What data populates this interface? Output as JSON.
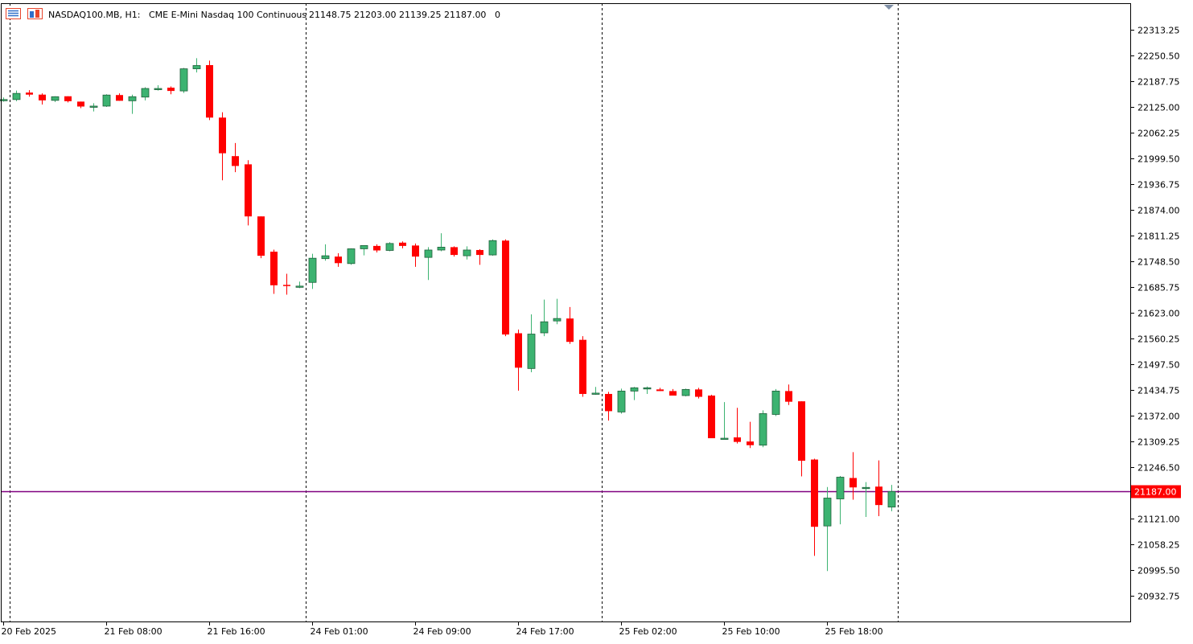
{
  "header": {
    "symbol": "NASDAQ100.MB, H1:",
    "description": "CME E-Mini Nasdaq 100 Continuous",
    "ohlc": "21148.75 21203.00 21139.25 21187.00",
    "extra": "0"
  },
  "colors": {
    "background": "#ffffff",
    "bull": "#3cb371",
    "bear": "#ff0000",
    "wick": "#000000",
    "price_line": "#800080",
    "price_label_bg": "#ff0000",
    "price_label_text": "#ffffff",
    "separator": "#000000"
  },
  "chart_data": {
    "type": "candlestick",
    "timeframe": "H1",
    "current_price": 21187.0,
    "current_price_label": "21187.00",
    "y_ticks": [
      "22313.25",
      "22250.50",
      "22187.75",
      "22125.00",
      "22062.25",
      "21999.50",
      "21936.75",
      "21874.00",
      "21811.25",
      "21748.50",
      "21685.75",
      "21623.00",
      "21560.25",
      "21497.50",
      "21434.75",
      "21372.00",
      "21309.25",
      "21246.50",
      "21121.00",
      "21058.25",
      "20995.50",
      "20932.75"
    ],
    "x_labels": [
      {
        "index": 0,
        "label": "20 Feb 2025"
      },
      {
        "index": 8,
        "label": "21 Feb 08:00"
      },
      {
        "index": 16,
        "label": "21 Feb 16:00"
      },
      {
        "index": 24,
        "label": "24 Feb 01:00"
      },
      {
        "index": 32,
        "label": "24 Feb 09:00"
      },
      {
        "index": 40,
        "label": "24 Feb 17:00"
      },
      {
        "index": 48,
        "label": "25 Feb 02:00"
      },
      {
        "index": 56,
        "label": "25 Feb 10:00"
      },
      {
        "index": 64,
        "label": "25 Feb 18:00"
      }
    ],
    "day_separators": [
      0.5,
      23.5,
      46.5,
      69.5
    ],
    "candles": [
      {
        "o": 22141,
        "h": 22148,
        "l": 22138,
        "c": 22143
      },
      {
        "o": 22143,
        "h": 22165,
        "l": 22139,
        "c": 22158
      },
      {
        "o": 22160,
        "h": 22166,
        "l": 22150,
        "c": 22155
      },
      {
        "o": 22155,
        "h": 22158,
        "l": 22131,
        "c": 22141
      },
      {
        "o": 22141,
        "h": 22151,
        "l": 22137,
        "c": 22150
      },
      {
        "o": 22151,
        "h": 22151,
        "l": 22136,
        "c": 22139
      },
      {
        "o": 22138,
        "h": 22138,
        "l": 22122,
        "c": 22126
      },
      {
        "o": 22127,
        "h": 22134,
        "l": 22114,
        "c": 22127
      },
      {
        "o": 22127,
        "h": 22156,
        "l": 22125,
        "c": 22154
      },
      {
        "o": 22154,
        "h": 22158,
        "l": 22140,
        "c": 22140
      },
      {
        "o": 22140,
        "h": 22155,
        "l": 22108,
        "c": 22150
      },
      {
        "o": 22149,
        "h": 22173,
        "l": 22141,
        "c": 22170
      },
      {
        "o": 22168,
        "h": 22178,
        "l": 22165,
        "c": 22170
      },
      {
        "o": 22172,
        "h": 22175,
        "l": 22156,
        "c": 22164
      },
      {
        "o": 22164,
        "h": 22220,
        "l": 22159,
        "c": 22218
      },
      {
        "o": 22218,
        "h": 22244,
        "l": 22209,
        "c": 22226
      },
      {
        "o": 22227,
        "h": 22238,
        "l": 22093,
        "c": 22099
      },
      {
        "o": 22099,
        "h": 22112,
        "l": 21946,
        "c": 22012
      },
      {
        "o": 22005,
        "h": 22037,
        "l": 21966,
        "c": 21981
      },
      {
        "o": 21985,
        "h": 21995,
        "l": 21836,
        "c": 21858
      },
      {
        "o": 21858,
        "h": 21858,
        "l": 21756,
        "c": 21762
      },
      {
        "o": 21772,
        "h": 21777,
        "l": 21669,
        "c": 21690
      },
      {
        "o": 21691,
        "h": 21718,
        "l": 21667,
        "c": 21690
      },
      {
        "o": 21688,
        "h": 21699,
        "l": 21683,
        "c": 21688
      },
      {
        "o": 21697,
        "h": 21767,
        "l": 21681,
        "c": 21756
      },
      {
        "o": 21755,
        "h": 21790,
        "l": 21750,
        "c": 21762
      },
      {
        "o": 21760,
        "h": 21768,
        "l": 21735,
        "c": 21744
      },
      {
        "o": 21743,
        "h": 21780,
        "l": 21740,
        "c": 21779
      },
      {
        "o": 21779,
        "h": 21787,
        "l": 21763,
        "c": 21787
      },
      {
        "o": 21786,
        "h": 21790,
        "l": 21770,
        "c": 21775
      },
      {
        "o": 21775,
        "h": 21795,
        "l": 21773,
        "c": 21792
      },
      {
        "o": 21794,
        "h": 21797,
        "l": 21780,
        "c": 21786
      },
      {
        "o": 21787,
        "h": 21792,
        "l": 21735,
        "c": 21760
      },
      {
        "o": 21758,
        "h": 21783,
        "l": 21703,
        "c": 21776
      },
      {
        "o": 21776,
        "h": 21817,
        "l": 21773,
        "c": 21783
      },
      {
        "o": 21783,
        "h": 21785,
        "l": 21760,
        "c": 21764
      },
      {
        "o": 21762,
        "h": 21785,
        "l": 21753,
        "c": 21776
      },
      {
        "o": 21776,
        "h": 21778,
        "l": 21740,
        "c": 21764
      },
      {
        "o": 21764,
        "h": 21802,
        "l": 21762,
        "c": 21799
      },
      {
        "o": 21799,
        "h": 21802,
        "l": 21566,
        "c": 21570
      },
      {
        "o": 21573,
        "h": 21582,
        "l": 21433,
        "c": 21489
      },
      {
        "o": 21487,
        "h": 21619,
        "l": 21478,
        "c": 21571
      },
      {
        "o": 21574,
        "h": 21655,
        "l": 21566,
        "c": 21601
      },
      {
        "o": 21603,
        "h": 21657,
        "l": 21595,
        "c": 21609
      },
      {
        "o": 21609,
        "h": 21637,
        "l": 21547,
        "c": 21552
      },
      {
        "o": 21557,
        "h": 21566,
        "l": 21418,
        "c": 21425
      },
      {
        "o": 21425,
        "h": 21442,
        "l": 21423,
        "c": 21427
      },
      {
        "o": 21425,
        "h": 21430,
        "l": 21360,
        "c": 21383
      },
      {
        "o": 21381,
        "h": 21438,
        "l": 21377,
        "c": 21432
      },
      {
        "o": 21432,
        "h": 21442,
        "l": 21410,
        "c": 21440
      },
      {
        "o": 21439,
        "h": 21443,
        "l": 21425,
        "c": 21440
      },
      {
        "o": 21436,
        "h": 21440,
        "l": 21432,
        "c": 21432
      },
      {
        "o": 21432,
        "h": 21437,
        "l": 21424,
        "c": 21421
      },
      {
        "o": 21421,
        "h": 21438,
        "l": 21419,
        "c": 21436
      },
      {
        "o": 21436,
        "h": 21440,
        "l": 21414,
        "c": 21418
      },
      {
        "o": 21421,
        "h": 21423,
        "l": 21318,
        "c": 21317
      },
      {
        "o": 21317,
        "h": 21405,
        "l": 21315,
        "c": 21317
      },
      {
        "o": 21319,
        "h": 21391,
        "l": 21304,
        "c": 21308
      },
      {
        "o": 21309,
        "h": 21357,
        "l": 21293,
        "c": 21300
      },
      {
        "o": 21300,
        "h": 21385,
        "l": 21295,
        "c": 21377
      },
      {
        "o": 21375,
        "h": 21437,
        "l": 21371,
        "c": 21432
      },
      {
        "o": 21432,
        "h": 21448,
        "l": 21398,
        "c": 21406
      },
      {
        "o": 21407,
        "h": 21407,
        "l": 21224,
        "c": 21262
      },
      {
        "o": 21265,
        "h": 21267,
        "l": 21030,
        "c": 21101
      },
      {
        "o": 21103,
        "h": 21198,
        "l": 20993,
        "c": 21171
      },
      {
        "o": 21169,
        "h": 21225,
        "l": 21107,
        "c": 21222
      },
      {
        "o": 21220,
        "h": 21283,
        "l": 21167,
        "c": 21197
      },
      {
        "o": 21197,
        "h": 21210,
        "l": 21125,
        "c": 21197
      },
      {
        "o": 21199,
        "h": 21263,
        "l": 21127,
        "c": 21154
      },
      {
        "o": 21149,
        "h": 21203,
        "l": 21139,
        "c": 21187
      }
    ]
  }
}
